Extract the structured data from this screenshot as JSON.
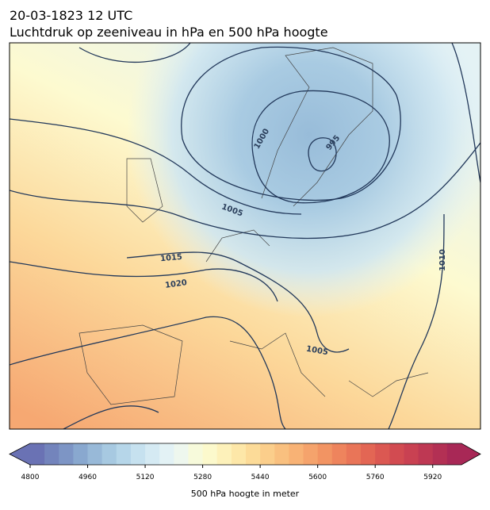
{
  "header": {
    "date": "20-03-1823 12 UTC",
    "title": "Luchtdruk op zeeniveau in hPa en 500 hPa hoogte"
  },
  "contour_labels": [
    "1000",
    "995",
    "1005",
    "1010",
    "1015",
    "1020",
    "1005"
  ],
  "colorbar": {
    "label": "500 hPa hoogte in meter",
    "range": [
      4800,
      6000
    ],
    "ticks": [
      4800,
      4960,
      5120,
      5280,
      5440,
      5600,
      5760,
      5920
    ],
    "colors": [
      "#6a72b4",
      "#7384bc",
      "#7d95c5",
      "#89a8cf",
      "#98b9d8",
      "#a7c9e1",
      "#b6d6e9",
      "#c6e1ef",
      "#d5eaf3",
      "#e3f2f5",
      "#eef7ee",
      "#f7fadb",
      "#fcf9cc",
      "#fdf1ba",
      "#fde7a8",
      "#fcdb98",
      "#fbce8b",
      "#f9c07f",
      "#f8b275",
      "#f5a36c",
      "#f29463",
      "#ee845d",
      "#e97558",
      "#e36654",
      "#db5852",
      "#d24b51",
      "#c94152",
      "#be3853",
      "#b33054",
      "#a82856"
    ]
  }
}
